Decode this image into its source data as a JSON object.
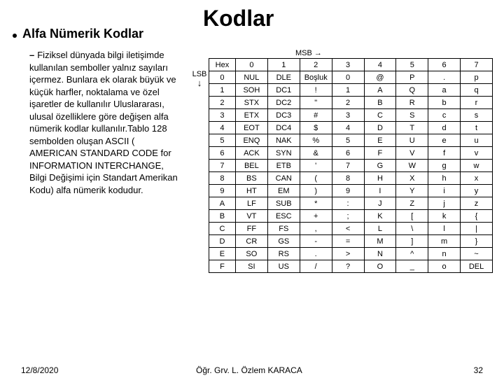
{
  "title": "Kodlar",
  "bullet": "Alfa Nümerik Kodlar",
  "paragraph": "Fiziksel dünyada bilgi iletişimde kullanılan semboller yalnız sayıları içermez. Bunlara ek olarak büyük ve küçük harfler, noktalama ve özel işaretler de kullanılır Uluslararası, ulusal özelliklere göre değişen alfa nümerik kodlar kullanılır.Tablo 128 sembolden oluşan ASCII ( AMERICAN STANDARD CODE for INFORMATION INTERCHANGE, Bilgi Değişimi için Standart Amerikan Kodu) alfa nümerik kodudur.",
  "table": {
    "msb_label": "MSB",
    "lsb_label": "LSB",
    "headers": [
      "Hex",
      "0",
      "1",
      "2",
      "3",
      "4",
      "5",
      "6",
      "7"
    ],
    "rows": [
      [
        "0",
        "NUL",
        "DLE",
        "Boşluk",
        "0",
        "@",
        "P",
        ".",
        "p"
      ],
      [
        "1",
        "SOH",
        "DC1",
        "!",
        "1",
        "A",
        "Q",
        "a",
        "q"
      ],
      [
        "2",
        "STX",
        "DC2",
        "\"",
        "2",
        "B",
        "R",
        "b",
        "r"
      ],
      [
        "3",
        "ETX",
        "DC3",
        "#",
        "3",
        "C",
        "S",
        "c",
        "s"
      ],
      [
        "4",
        "EOT",
        "DC4",
        "$",
        "4",
        "D",
        "T",
        "d",
        "t"
      ],
      [
        "5",
        "ENQ",
        "NAK",
        "%",
        "5",
        "E",
        "U",
        "e",
        "u"
      ],
      [
        "6",
        "ACK",
        "SYN",
        "&",
        "6",
        "F",
        "V",
        "f",
        "v"
      ],
      [
        "7",
        "BEL",
        "ETB",
        "'",
        "7",
        "G",
        "W",
        "g",
        "w"
      ],
      [
        "8",
        "BS",
        "CAN",
        "(",
        "8",
        "H",
        "X",
        "h",
        "x"
      ],
      [
        "9",
        "HT",
        "EM",
        ")",
        "9",
        "I",
        "Y",
        "i",
        "y"
      ],
      [
        "A",
        "LF",
        "SUB",
        "*",
        ":",
        "J",
        "Z",
        "j",
        "z"
      ],
      [
        "B",
        "VT",
        "ESC",
        "+",
        ";",
        "K",
        "[",
        "k",
        "{"
      ],
      [
        "C",
        "FF",
        "FS",
        ",",
        "<",
        "L",
        "\\",
        "l",
        "|"
      ],
      [
        "D",
        "CR",
        "GS",
        "-",
        "=",
        "M",
        "]",
        "m",
        "}"
      ],
      [
        "E",
        "SO",
        "RS",
        ".",
        ">",
        "N",
        "^",
        "n",
        "~"
      ],
      [
        "F",
        "SI",
        "US",
        "/",
        "?",
        "O",
        "_",
        "o",
        "DEL"
      ]
    ],
    "col_widths": [
      "38px",
      "46px",
      "46px",
      "46px",
      "46px",
      "46px",
      "46px",
      "46px",
      "46px"
    ],
    "font_size": 11,
    "border_color": "#000000",
    "background_color": "#ffffff"
  },
  "footer": {
    "date": "12/8/2020",
    "author": "Öğr. Grv. L. Özlem KARACA",
    "page": "32"
  },
  "colors": {
    "text": "#000000",
    "background": "#ffffff"
  },
  "typography": {
    "title_size": 32,
    "bullet_size": 18,
    "body_size": 13,
    "table_size": 11,
    "footer_size": 12,
    "family": "Arial"
  }
}
